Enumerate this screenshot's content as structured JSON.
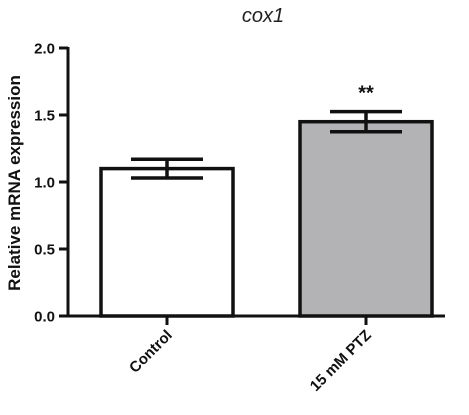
{
  "chart_data": {
    "type": "bar",
    "title": "cox1",
    "xlabel": "",
    "ylabel": "Relative mRNA expression",
    "categories": [
      "Control",
      "15 mM PTZ"
    ],
    "values": [
      1.1,
      1.45
    ],
    "errors": [
      0.07,
      0.075
    ],
    "bar_colors": [
      "#ffffff",
      "#b3b3b5"
    ],
    "annotations": [
      "",
      "**"
    ],
    "ylim": [
      0,
      2.0
    ],
    "yticks": [
      0.0,
      0.5,
      1.0,
      1.5,
      2.0
    ],
    "ytick_labels": [
      "0.0",
      "0.5",
      "1.0",
      "1.5",
      "2.0"
    ],
    "grid": false
  }
}
